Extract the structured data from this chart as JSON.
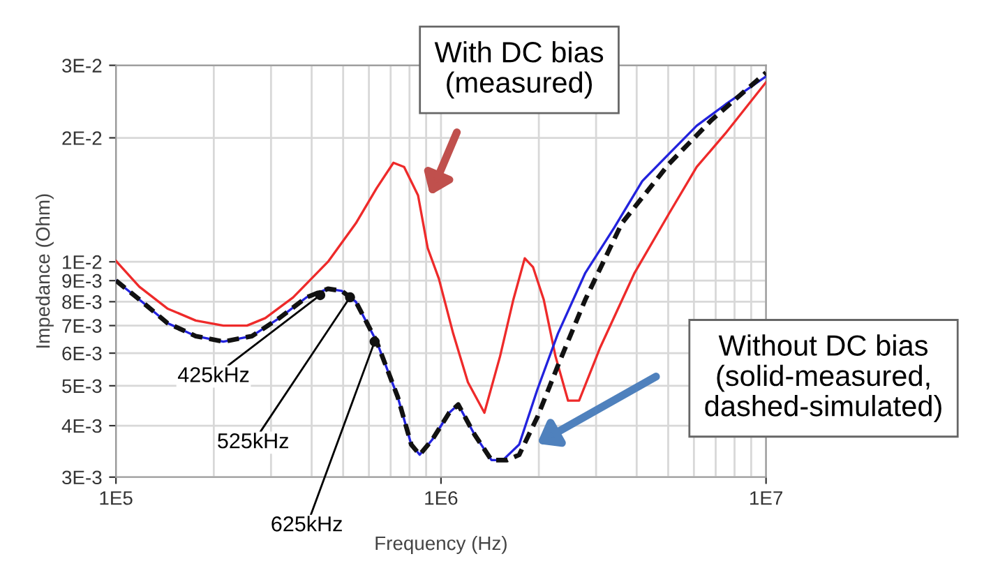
{
  "chart_data": {
    "type": "line",
    "xlabel": "Frequency (Hz)",
    "ylabel": "Impedance (Ohm)",
    "log": "xy",
    "grid": true,
    "legend": false,
    "xlim": [
      100000,
      10000000
    ],
    "ylim": [
      0.003,
      0.03
    ],
    "xticks": [
      {
        "value": 100000,
        "label": "1E5"
      },
      {
        "value": 200000,
        "label": null
      },
      {
        "value": 300000,
        "label": null
      },
      {
        "value": 400000,
        "label": null
      },
      {
        "value": 500000,
        "label": null
      },
      {
        "value": 600000,
        "label": null
      },
      {
        "value": 700000,
        "label": null
      },
      {
        "value": 800000,
        "label": null
      },
      {
        "value": 900000,
        "label": null
      },
      {
        "value": 1000000,
        "label": "1E6"
      },
      {
        "value": 2000000,
        "label": null
      },
      {
        "value": 3000000,
        "label": null
      },
      {
        "value": 4000000,
        "label": null
      },
      {
        "value": 5000000,
        "label": null
      },
      {
        "value": 6000000,
        "label": null
      },
      {
        "value": 7000000,
        "label": null
      },
      {
        "value": 8000000,
        "label": null
      },
      {
        "value": 9000000,
        "label": null
      },
      {
        "value": 10000000,
        "label": "1E7"
      }
    ],
    "yticks": [
      {
        "value": 0.003,
        "label": "3E-3"
      },
      {
        "value": 0.004,
        "label": "4E-3"
      },
      {
        "value": 0.005,
        "label": "5E-3"
      },
      {
        "value": 0.006,
        "label": "6E-3"
      },
      {
        "value": 0.007,
        "label": "7E-3"
      },
      {
        "value": 0.008,
        "label": "8E-3"
      },
      {
        "value": 0.009,
        "label": "9E-3"
      },
      {
        "value": 0.01,
        "label": "1E-2"
      },
      {
        "value": 0.02,
        "label": "2E-2"
      },
      {
        "value": 0.03,
        "label": "3E-2"
      }
    ],
    "series": [
      {
        "type": "line",
        "color": "#ee2a2a",
        "line_style": "solid",
        "x": [
          100000,
          118000,
          144000,
          176000,
          214000,
          253000,
          288000,
          351000,
          449000,
          547000,
          634000,
          714000,
          770000,
          850000,
          910000,
          985000,
          1090000,
          1210000,
          1360000,
          1520000,
          1670000,
          1810000,
          1920000,
          2070000,
          2250000,
          2460000,
          2660000,
          3090000,
          3940000,
          5030000,
          6120000,
          7500000,
          10000000
        ],
        "values": [
          0.01005,
          0.0087,
          0.0077,
          0.0072,
          0.007,
          0.007,
          0.0073,
          0.0082,
          0.01,
          0.0124,
          0.0151,
          0.0174,
          0.017,
          0.0145,
          0.0108,
          0.0091,
          0.0067,
          0.0051,
          0.0043,
          0.0059,
          0.0081,
          0.0102,
          0.0097,
          0.0081,
          0.0059,
          0.0046,
          0.0046,
          0.0062,
          0.0094,
          0.0131,
          0.017,
          0.0205,
          0.0273
        ]
      },
      {
        "type": "line",
        "color": "#2222dd",
        "line_style": "solid",
        "x": [
          100000,
          118000,
          144000,
          176000,
          214000,
          262000,
          318000,
          386000,
          449000,
          495000,
          547000,
          634000,
          736000,
          810000,
          860000,
          940000,
          1060000,
          1130000,
          1270000,
          1430000,
          1550000,
          1740000,
          1980000,
          2290000,
          2780000,
          3410000,
          4160000,
          5030000,
          6120000,
          7500000,
          10000000
        ],
        "values": [
          0.009,
          0.0081,
          0.0071,
          0.0066,
          0.0064,
          0.0066,
          0.0073,
          0.0082,
          0.0086,
          0.0085,
          0.008,
          0.0064,
          0.0047,
          0.0036,
          0.0034,
          0.0037,
          0.0043,
          0.0045,
          0.0038,
          0.0033,
          0.0033,
          0.0036,
          0.0049,
          0.0067,
          0.0094,
          0.0121,
          0.0157,
          0.0183,
          0.0214,
          0.0241,
          0.0282
        ]
      },
      {
        "type": "line",
        "color": "#111111",
        "line_style": "dashed",
        "x": [
          100000,
          118000,
          144000,
          176000,
          214000,
          262000,
          318000,
          386000,
          449000,
          495000,
          547000,
          634000,
          736000,
          810000,
          860000,
          940000,
          1060000,
          1130000,
          1270000,
          1430000,
          1600000,
          1740000,
          1980000,
          2290000,
          2780000,
          3600000,
          5030000,
          6800000,
          10000000
        ],
        "values": [
          0.009,
          0.0081,
          0.0071,
          0.0066,
          0.0064,
          0.0066,
          0.0073,
          0.0082,
          0.0086,
          0.0085,
          0.008,
          0.0064,
          0.0047,
          0.0036,
          0.0034,
          0.0037,
          0.0043,
          0.0045,
          0.0038,
          0.0033,
          0.0033,
          0.0034,
          0.0042,
          0.0056,
          0.0081,
          0.0124,
          0.0173,
          0.0221,
          0.0288
        ]
      },
      {
        "type": "scatter",
        "color": "#111111",
        "marker": "circle",
        "x": [
          425000,
          525000,
          625000
        ],
        "values": [
          0.0083,
          0.0082,
          0.0064
        ]
      }
    ],
    "annotations": [
      {
        "text": "425kHz",
        "x": 425000,
        "y": 0.0083
      },
      {
        "text": "525kHz",
        "x": 525000,
        "y": 0.0082
      },
      {
        "text": "625kHz",
        "x": 625000,
        "y": 0.0064
      },
      "With DC bias\n(measured)",
      "Without DC bias\n(solid-measured,\ndashed-simulated)"
    ]
  }
}
